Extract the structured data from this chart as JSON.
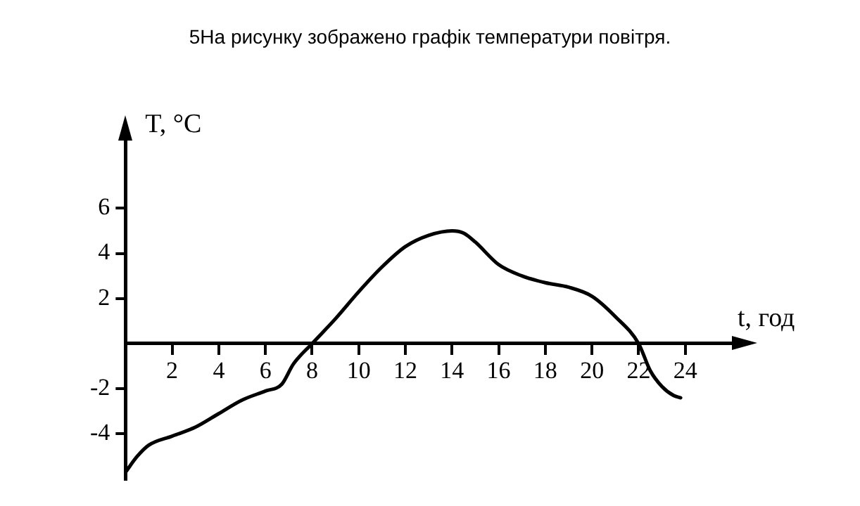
{
  "chart_data": {
    "type": "line",
    "title": "5На рисунку зображено графік температури повітря.",
    "xlabel": "t, год",
    "ylabel": "T, °C",
    "x": [
      0,
      0.5,
      1,
      2,
      3,
      4,
      5,
      6,
      6.7,
      7.2,
      8,
      9,
      10,
      11,
      12,
      13,
      14,
      14.5,
      15,
      16,
      17,
      18,
      19,
      20,
      21,
      22,
      22.5,
      23,
      23.5,
      23.8
    ],
    "series": [
      {
        "color": "#000000",
        "values": [
          -5.7,
          -5,
          -4.5,
          -4.1,
          -3.7,
          -3.1,
          -2.5,
          -2.1,
          -1.8,
          -0.9,
          0,
          1.1,
          2.3,
          3.4,
          4.3,
          4.8,
          5,
          4.9,
          4.5,
          3.5,
          3,
          2.7,
          2.5,
          2.1,
          1.2,
          0,
          -1.2,
          -1.9,
          -2.3,
          -2.4
        ]
      }
    ],
    "xlim": [
      0,
      26
    ],
    "xticks": [
      2,
      4,
      6,
      8,
      10,
      12,
      14,
      16,
      18,
      20,
      22,
      24
    ],
    "ylim": [
      -6,
      9
    ],
    "yticks": [
      -4,
      -2,
      2,
      4,
      6
    ],
    "grid": false,
    "legend": false,
    "marker": "none",
    "line_style": "solid"
  }
}
